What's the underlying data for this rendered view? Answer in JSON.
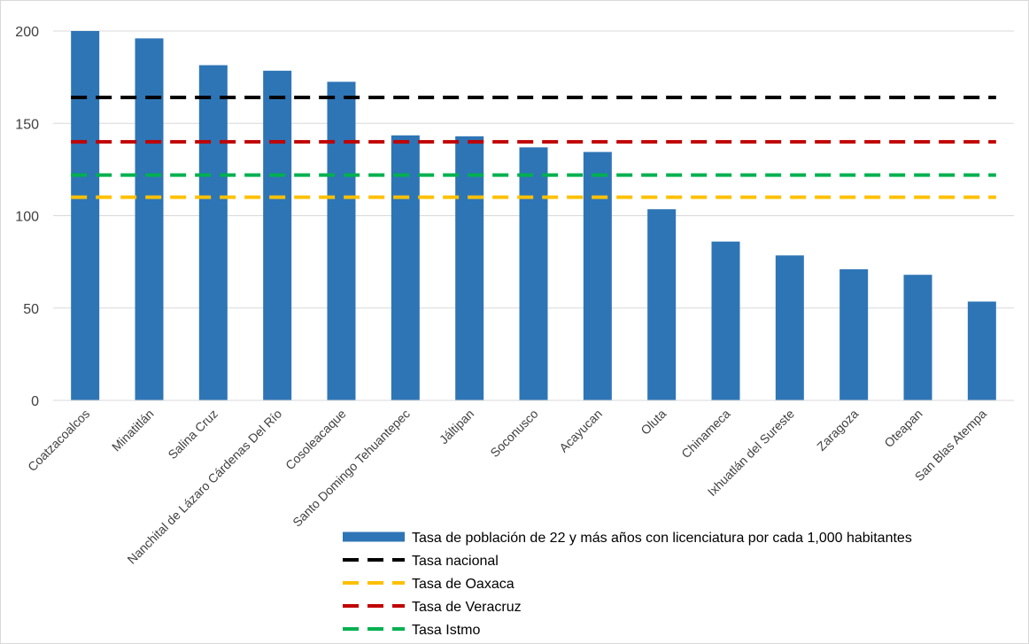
{
  "chart_data": {
    "type": "bar",
    "categories": [
      "Coatzacoalcos",
      "Minatitlán",
      "Salina Cruz",
      "Nanchital de Lázaro Cárdenas Del Río",
      "Cosoleacaque",
      "Santo Domingo Tehuantepec",
      "Jáltipan",
      "Soconusco",
      "Acayucan",
      "Oluta",
      "Chinameca",
      "Ixhuatlán del Sureste",
      "Zaragoza",
      "Oteapan",
      "San Blas Atempa"
    ],
    "series": [
      {
        "name": "Tasa de población de 22  y más años con licenciatura por cada 1,000 habitantes",
        "type": "bar",
        "color": "#2E75B6",
        "values": [
          200,
          196,
          181.5,
          178.5,
          172.5,
          143.5,
          143,
          137,
          134.5,
          103.5,
          86,
          78.5,
          71,
          68,
          53.5
        ]
      }
    ],
    "reference_lines": [
      {
        "name": "Tasa nacional",
        "value": 164,
        "color": "#000000"
      },
      {
        "name": "Tasa de Oaxaca",
        "value": 110,
        "color": "#FFC000"
      },
      {
        "name": "Tasa de Veracruz",
        "value": 140,
        "color": "#C00000"
      },
      {
        "name": "Tasa Istmo",
        "value": 122,
        "color": "#00B050"
      }
    ],
    "title": "",
    "xlabel": "",
    "ylabel": "",
    "ylim": [
      0,
      200
    ],
    "yticks": [
      "0",
      "50",
      "100",
      "150",
      "200"
    ],
    "grid": true,
    "legend_position": "bottom-right"
  }
}
